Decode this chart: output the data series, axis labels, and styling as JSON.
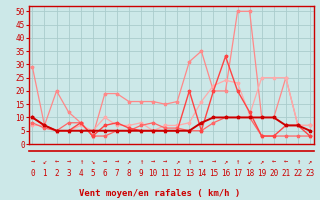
{
  "title": "",
  "xlabel": "Vent moyen/en rafales ( km/h )",
  "bg_color": "#cce8e8",
  "grid_color": "#aacccc",
  "x_ticks": [
    0,
    1,
    2,
    3,
    4,
    5,
    6,
    7,
    8,
    9,
    10,
    11,
    12,
    13,
    14,
    15,
    16,
    17,
    18,
    19,
    20,
    21,
    22,
    23
  ],
  "y_ticks": [
    0,
    5,
    10,
    15,
    20,
    25,
    30,
    35,
    40,
    45,
    50
  ],
  "ylim": [
    0,
    52
  ],
  "xlim": [
    -0.3,
    23.3
  ],
  "series": [
    {
      "color": "#ff8888",
      "lw": 0.9,
      "data": [
        [
          0,
          29
        ],
        [
          1,
          7
        ],
        [
          2,
          20
        ],
        [
          3,
          12
        ],
        [
          4,
          8
        ],
        [
          5,
          3
        ],
        [
          6,
          19
        ],
        [
          7,
          19
        ],
        [
          8,
          16
        ],
        [
          9,
          16
        ],
        [
          10,
          16
        ],
        [
          11,
          15
        ],
        [
          12,
          16
        ],
        [
          13,
          31
        ],
        [
          14,
          35
        ],
        [
          15,
          20
        ],
        [
          16,
          20
        ],
        [
          17,
          50
        ],
        [
          18,
          50
        ],
        [
          19,
          10
        ],
        [
          20,
          10
        ],
        [
          21,
          25
        ],
        [
          22,
          7
        ],
        [
          23,
          7
        ]
      ]
    },
    {
      "color": "#ffaaaa",
      "lw": 0.9,
      "data": [
        [
          0,
          7
        ],
        [
          1,
          7
        ],
        [
          2,
          5
        ],
        [
          3,
          5
        ],
        [
          4,
          7
        ],
        [
          5,
          5
        ],
        [
          6,
          10
        ],
        [
          7,
          7
        ],
        [
          8,
          7
        ],
        [
          9,
          8
        ],
        [
          10,
          5
        ],
        [
          11,
          7
        ],
        [
          12,
          7
        ],
        [
          13,
          8
        ],
        [
          14,
          16
        ],
        [
          15,
          22
        ],
        [
          16,
          24
        ],
        [
          17,
          23
        ],
        [
          18,
          11
        ],
        [
          19,
          25
        ],
        [
          20,
          25
        ],
        [
          21,
          25
        ],
        [
          22,
          7
        ],
        [
          23,
          7
        ]
      ]
    },
    {
      "color": "#ff6666",
      "lw": 0.9,
      "data": [
        [
          0,
          8
        ],
        [
          1,
          6
        ],
        [
          2,
          5
        ],
        [
          3,
          8
        ],
        [
          4,
          8
        ],
        [
          5,
          3
        ],
        [
          6,
          3
        ],
        [
          7,
          5
        ],
        [
          8,
          5
        ],
        [
          9,
          7
        ],
        [
          10,
          8
        ],
        [
          11,
          6
        ],
        [
          12,
          6
        ],
        [
          13,
          5
        ],
        [
          14,
          5
        ],
        [
          15,
          8
        ],
        [
          16,
          10
        ],
        [
          17,
          10
        ],
        [
          18,
          10
        ],
        [
          19,
          3
        ],
        [
          20,
          3
        ],
        [
          21,
          3
        ],
        [
          22,
          3
        ],
        [
          23,
          3
        ]
      ]
    },
    {
      "color": "#ff4444",
      "lw": 1.0,
      "data": [
        [
          0,
          10
        ],
        [
          1,
          7
        ],
        [
          2,
          5
        ],
        [
          3,
          5
        ],
        [
          4,
          8
        ],
        [
          5,
          3
        ],
        [
          6,
          7
        ],
        [
          7,
          8
        ],
        [
          8,
          6
        ],
        [
          9,
          5
        ],
        [
          10,
          5
        ],
        [
          11,
          5
        ],
        [
          12,
          5
        ],
        [
          13,
          20
        ],
        [
          14,
          5
        ],
        [
          15,
          20
        ],
        [
          16,
          33
        ],
        [
          17,
          20
        ],
        [
          18,
          12
        ],
        [
          19,
          3
        ],
        [
          20,
          3
        ],
        [
          21,
          7
        ],
        [
          22,
          7
        ],
        [
          23,
          3
        ]
      ]
    },
    {
      "color": "#cc0000",
      "lw": 1.4,
      "data": [
        [
          0,
          10
        ],
        [
          1,
          7
        ],
        [
          2,
          5
        ],
        [
          3,
          5
        ],
        [
          4,
          5
        ],
        [
          5,
          5
        ],
        [
          6,
          5
        ],
        [
          7,
          5
        ],
        [
          8,
          5
        ],
        [
          9,
          5
        ],
        [
          10,
          5
        ],
        [
          11,
          5
        ],
        [
          12,
          5
        ],
        [
          13,
          5
        ],
        [
          14,
          8
        ],
        [
          15,
          10
        ],
        [
          16,
          10
        ],
        [
          17,
          10
        ],
        [
          18,
          10
        ],
        [
          19,
          10
        ],
        [
          20,
          10
        ],
        [
          21,
          7
        ],
        [
          22,
          7
        ],
        [
          23,
          5
        ]
      ]
    }
  ],
  "arrows": [
    "→",
    "↙",
    "←",
    "→",
    "↑",
    "↘",
    "→",
    "→",
    "↗",
    "↑",
    "→",
    "→",
    "↗",
    "↑",
    "→",
    "→",
    "↗",
    "↑",
    "↙",
    "↗",
    "←",
    "←",
    "↑",
    "↗"
  ],
  "marker": "*",
  "markersize": 2.5,
  "tick_fontsize": 5.5,
  "xlabel_fontsize": 6.5,
  "arrow_fontsize": 5.0
}
